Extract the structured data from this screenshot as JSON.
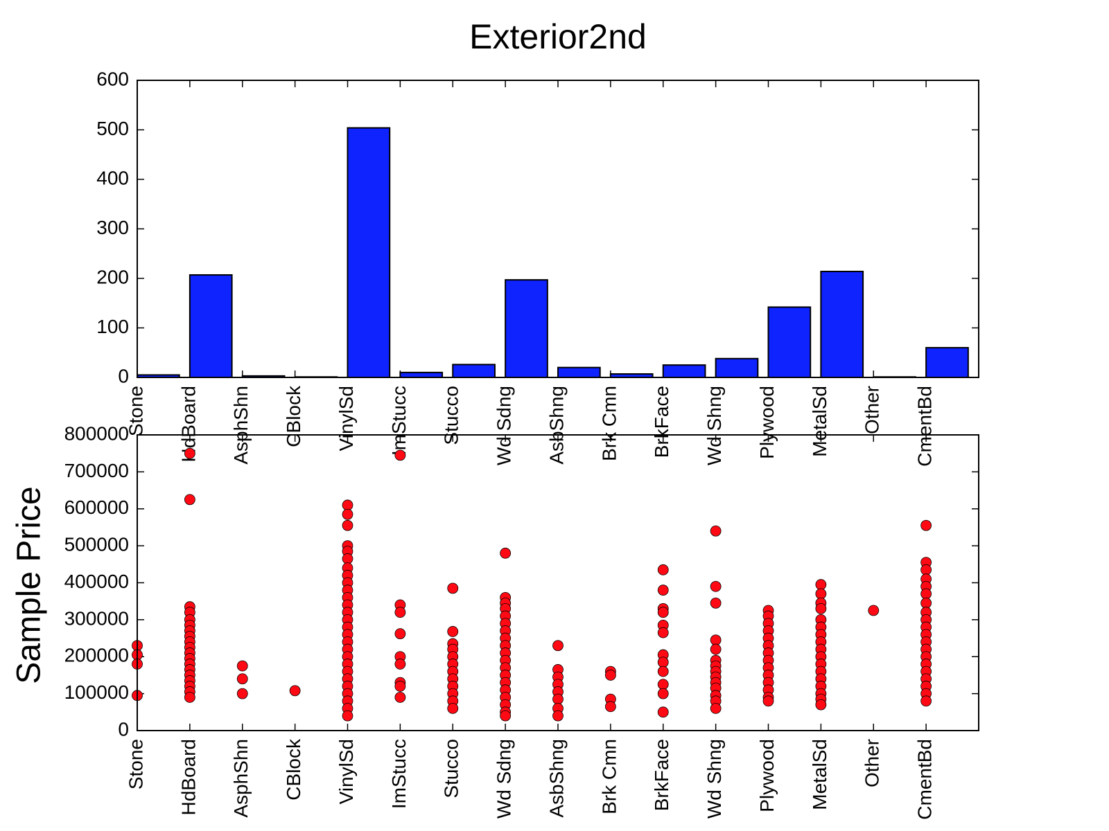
{
  "chart_data": [
    {
      "type": "bar",
      "title": "Exterior2nd",
      "categories": [
        "Stone",
        "HdBoard",
        "AsphShn",
        "CBlock",
        "VinylSd",
        "ImStucc",
        "Stucco",
        "Wd Sdng",
        "AsbShng",
        "Brk Cmn",
        "BrkFace",
        "Wd Shng",
        "Plywood",
        "MetalSd",
        "Other",
        "CmentBd"
      ],
      "values": [
        5,
        207,
        3,
        1,
        504,
        10,
        26,
        197,
        20,
        7,
        25,
        38,
        142,
        214,
        1,
        60
      ],
      "color": "#0f23ff",
      "ylim": [
        0,
        600
      ],
      "yticks": [
        0,
        100,
        200,
        300,
        400,
        500,
        600
      ]
    },
    {
      "type": "scatter",
      "ylabel": "Sample Price",
      "categories": [
        "Stone",
        "HdBoard",
        "AsphShn",
        "CBlock",
        "VinylSd",
        "ImStucc",
        "Stucco",
        "Wd Sdng",
        "AsbShng",
        "Brk Cmn",
        "BrkFace",
        "Wd Shng",
        "Plywood",
        "MetalSd",
        "Other",
        "CmentBd"
      ],
      "values": [
        [
          230000,
          205000,
          180000,
          95000
        ],
        [
          750000,
          625000,
          335000,
          320000,
          300000,
          285000,
          270000,
          255000,
          240000,
          225000,
          210000,
          195000,
          180000,
          165000,
          150000,
          135000,
          120000,
          105000,
          90000
        ],
        [
          175000,
          140000,
          100000
        ],
        [
          108000
        ],
        [
          610000,
          585000,
          555000,
          500000,
          485000,
          465000,
          440000,
          420000,
          400000,
          380000,
          360000,
          340000,
          320000,
          300000,
          280000,
          260000,
          240000,
          220000,
          200000,
          180000,
          160000,
          140000,
          120000,
          100000,
          80000,
          60000,
          40000
        ],
        [
          745000,
          340000,
          320000,
          262000,
          200000,
          180000,
          130000,
          120000,
          90000
        ],
        [
          385000,
          268000,
          235000,
          220000,
          200000,
          180000,
          160000,
          140000,
          120000,
          100000,
          80000,
          60000
        ],
        [
          480000,
          360000,
          345000,
          330000,
          310000,
          290000,
          270000,
          250000,
          230000,
          210000,
          190000,
          170000,
          150000,
          130000,
          110000,
          90000,
          70000,
          50000,
          40000
        ],
        [
          230000,
          165000,
          145000,
          125000,
          105000,
          85000,
          60000,
          40000
        ],
        [
          160000,
          150000,
          85000,
          65000
        ],
        [
          435000,
          380000,
          330000,
          320000,
          285000,
          265000,
          205000,
          185000,
          160000,
          125000,
          100000,
          50000
        ],
        [
          540000,
          390000,
          345000,
          245000,
          220000,
          190000,
          175000,
          160000,
          145000,
          130000,
          115000,
          95000,
          80000,
          60000
        ],
        [
          325000,
          310000,
          290000,
          270000,
          250000,
          230000,
          210000,
          190000,
          170000,
          150000,
          130000,
          110000,
          90000,
          80000
        ],
        [
          395000,
          370000,
          345000,
          330000,
          300000,
          280000,
          260000,
          240000,
          220000,
          200000,
          180000,
          160000,
          140000,
          120000,
          100000,
          85000,
          70000
        ],
        [
          325000
        ],
        [
          555000,
          455000,
          435000,
          410000,
          390000,
          370000,
          345000,
          320000,
          300000,
          280000,
          260000,
          240000,
          220000,
          200000,
          180000,
          160000,
          140000,
          120000,
          100000,
          80000
        ]
      ],
      "color": "#ff0a14",
      "ylim": [
        0,
        800000
      ],
      "yticks": [
        0,
        100000,
        200000,
        300000,
        400000,
        500000,
        600000,
        700000,
        800000
      ]
    }
  ]
}
